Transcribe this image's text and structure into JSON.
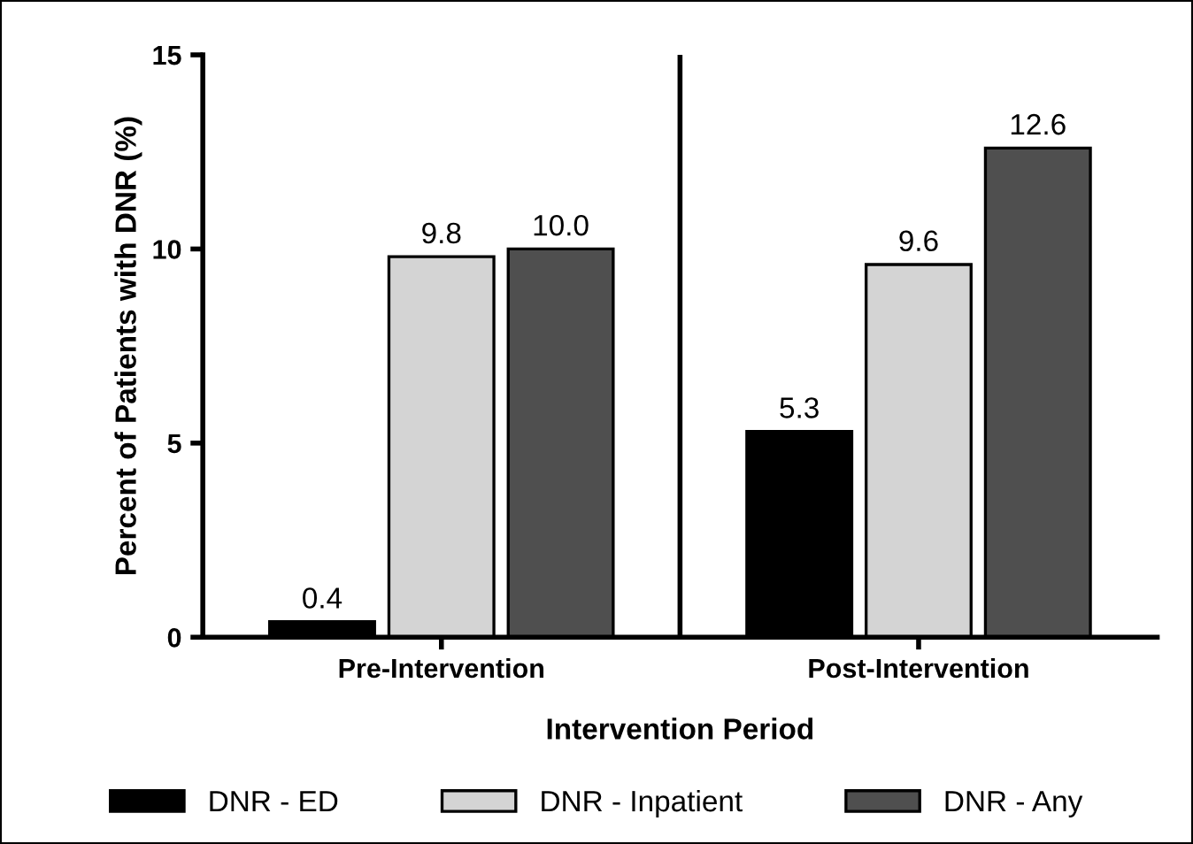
{
  "chart_data": {
    "type": "bar",
    "xlabel": "Intervention Period",
    "ylabel": "Percent of Patients with DNR (%)",
    "categories": [
      "Pre-Intervention",
      "Post-Intervention"
    ],
    "series": [
      {
        "name": "DNR - ED",
        "color": "#000000",
        "values": [
          0.4,
          5.3
        ]
      },
      {
        "name": "DNR - Inpatient",
        "color": "#d4d4d4",
        "values": [
          9.8,
          9.6
        ]
      },
      {
        "name": "DNR - Any",
        "color": "#4f4f4f",
        "values": [
          10.0,
          12.6
        ]
      }
    ],
    "value_labels": [
      [
        "0.4",
        "5.3"
      ],
      [
        "9.8",
        "9.6"
      ],
      [
        "10.0",
        "12.6"
      ]
    ],
    "ylim": [
      0,
      15
    ],
    "yticks": [
      0,
      5,
      10,
      15
    ],
    "grid": false,
    "legend": "bottom"
  }
}
